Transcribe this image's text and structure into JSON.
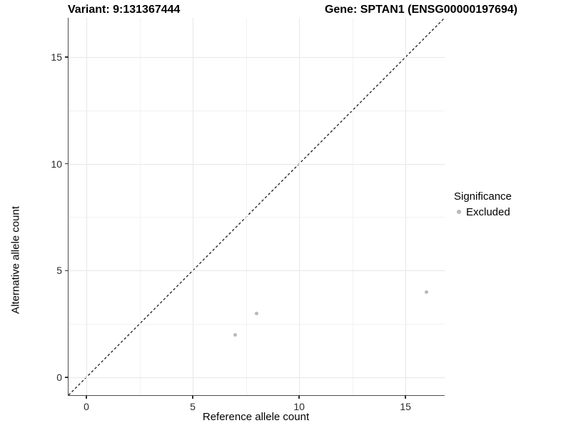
{
  "header": {
    "variant_title": "Variant: 9:131367444",
    "gene_title": "Gene: SPTAN1 (ENSG00000197694)"
  },
  "chart_data": {
    "type": "scatter",
    "title_left": "Variant: 9:131367444",
    "title_right": "Gene: SPTAN1 (ENSG00000197694)",
    "xlabel": "Reference allele count",
    "ylabel": "Alternative allele count",
    "xlim": [
      -0.84,
      16.84
    ],
    "ylim": [
      -0.84,
      16.84
    ],
    "xticks": [
      0,
      5,
      10,
      15
    ],
    "yticks": [
      0,
      5,
      10,
      15
    ],
    "x_minor_ticks": [
      2.5,
      7.5,
      12.5
    ],
    "y_minor_ticks": [
      2.5,
      7.5,
      12.5
    ],
    "grid": true,
    "series": [
      {
        "name": "Excluded",
        "color": "#b9b9b9",
        "points": [
          {
            "x": 7,
            "y": 2
          },
          {
            "x": 8,
            "y": 3
          },
          {
            "x": 16,
            "y": 4
          }
        ]
      }
    ],
    "identity_line": {
      "style": "dashed",
      "color": "#1a1a1a",
      "equation": "y = x"
    },
    "legend": {
      "title": "Significance",
      "position": "right",
      "entries": [
        {
          "label": "Excluded",
          "color": "#b9b9b9"
        }
      ]
    }
  }
}
